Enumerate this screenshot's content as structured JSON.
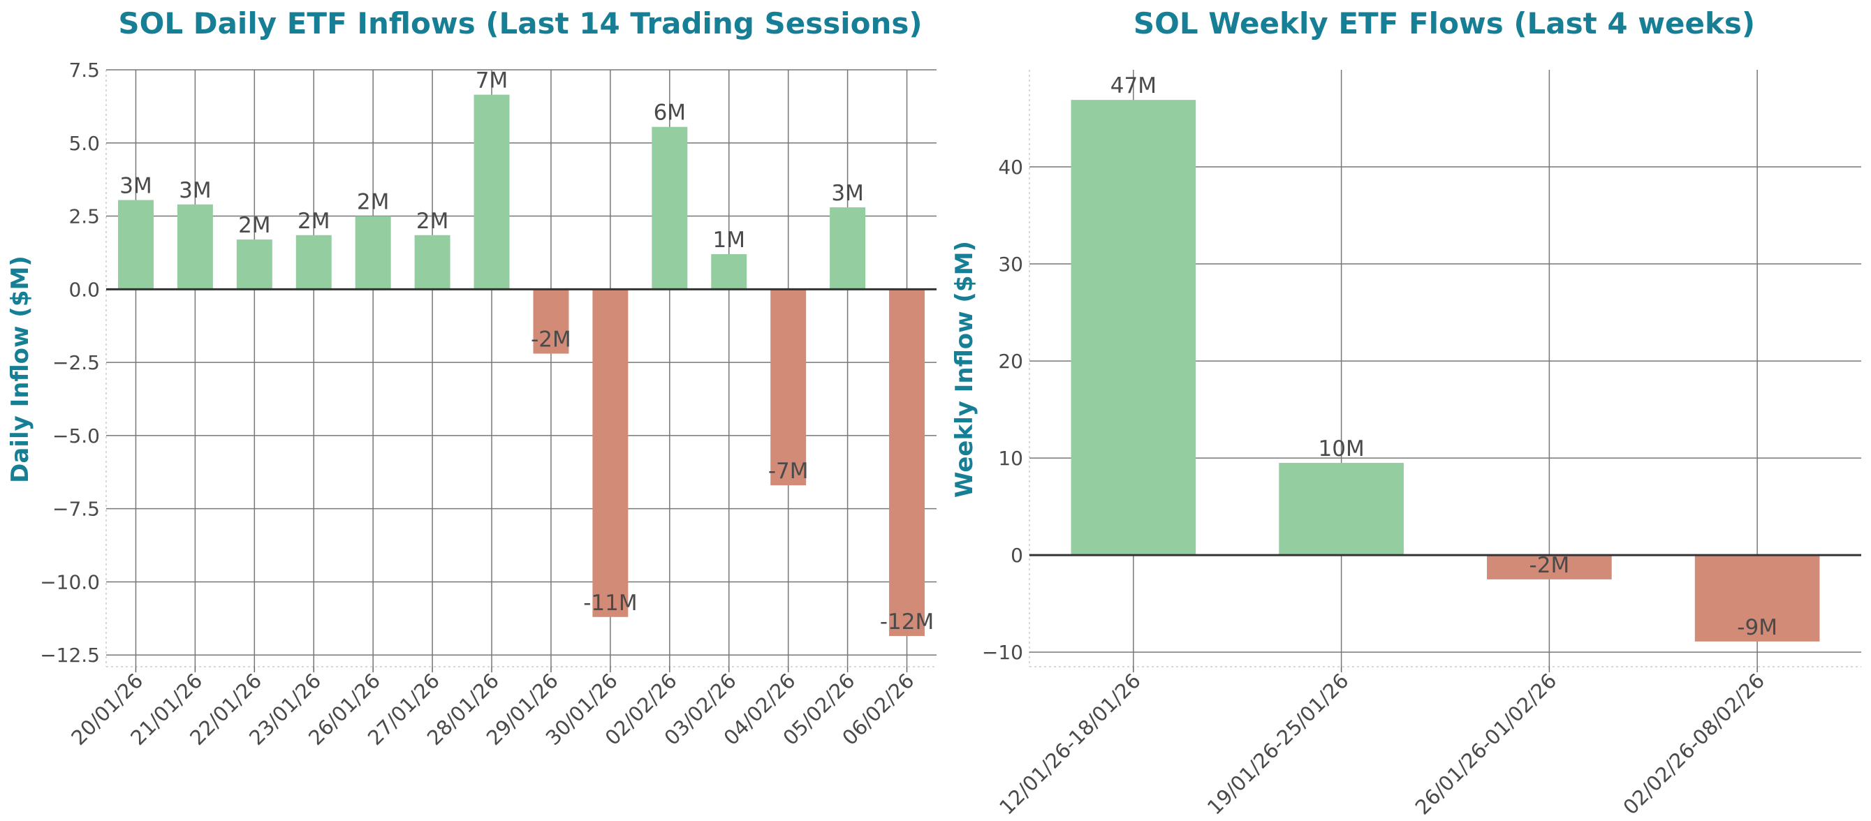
{
  "colors": {
    "positive": "#93cda0",
    "negative": "#d28b77",
    "title": "#177f95",
    "text": "#4a4a4a"
  },
  "chart_data": [
    {
      "type": "bar",
      "title": "SOL Daily ETF Inflows (Last 14 Trading Sessions)",
      "xlabel": "",
      "ylabel": "Daily Inflow ($M)",
      "ylim": [
        -12.9,
        7.5
      ],
      "yticks": [
        -12.5,
        -10.0,
        -7.5,
        -5.0,
        -2.5,
        0.0,
        2.5,
        5.0,
        7.5
      ],
      "ytick_labels": [
        "−12.5",
        "−10.0",
        "−7.5",
        "−5.0",
        "−2.5",
        "0.0",
        "2.5",
        "5.0",
        "7.5"
      ],
      "grid": true,
      "categories": [
        "20/01/26",
        "21/01/26",
        "22/01/26",
        "23/01/26",
        "26/01/26",
        "27/01/26",
        "28/01/26",
        "29/01/26",
        "30/01/26",
        "02/02/26",
        "03/02/26",
        "04/02/26",
        "05/02/26",
        "06/02/26"
      ],
      "values": [
        3.05,
        2.9,
        1.7,
        1.85,
        2.5,
        1.85,
        6.65,
        -2.2,
        -11.2,
        5.55,
        1.2,
        -6.7,
        2.8,
        -11.85
      ],
      "labels": [
        "3M",
        "3M",
        "2M",
        "2M",
        "2M",
        "2M",
        "7M",
        "-2M",
        "-11M",
        "6M",
        "1M",
        "-7M",
        "3M",
        "-12M"
      ]
    },
    {
      "type": "bar",
      "title": "SOL Weekly ETF Flows (Last 4 weeks)",
      "xlabel": "",
      "ylabel": "Weekly Inflow ($M)",
      "ylim": [
        -11.5,
        50
      ],
      "yticks": [
        -10,
        0,
        10,
        20,
        30,
        40
      ],
      "ytick_labels": [
        "−10",
        "0",
        "10",
        "20",
        "30",
        "40"
      ],
      "grid": true,
      "categories": [
        "12/01/26-18/01/26",
        "19/01/26-25/01/26",
        "26/01/26-01/02/26",
        "02/02/26-08/02/26"
      ],
      "values": [
        46.9,
        9.5,
        -2.5,
        -8.9
      ],
      "labels": [
        "47M",
        "10M",
        "-2M",
        "-9M"
      ]
    }
  ]
}
